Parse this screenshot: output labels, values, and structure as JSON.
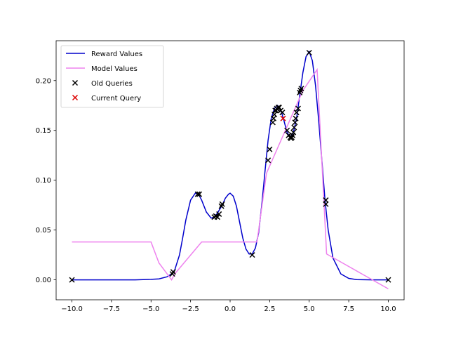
{
  "chart_data": {
    "type": "line",
    "title": "",
    "xlabel": "",
    "ylabel": "",
    "xlim": [
      -11,
      11
    ],
    "ylim": [
      -0.02,
      0.24
    ],
    "xticks": [
      -10.0,
      -7.5,
      -5.0,
      -2.5,
      0.0,
      2.5,
      5.0,
      7.5,
      10.0
    ],
    "xtick_labels": [
      "−10.0",
      "−7.5",
      "−5.0",
      "−2.5",
      "0.0",
      "2.5",
      "5.0",
      "7.5",
      "10.0"
    ],
    "yticks": [
      0.0,
      0.05,
      0.1,
      0.15,
      0.2
    ],
    "ytick_labels": [
      "0.00",
      "0.05",
      "0.10",
      "0.15",
      "0.20"
    ],
    "legend_position": "upper-left",
    "series": [
      {
        "name": "Reward Values",
        "kind": "line",
        "color": "#0000cc",
        "x": [
          -10,
          -6,
          -5,
          -4.5,
          -4,
          -3.7,
          -3.5,
          -3.2,
          -3.0,
          -2.8,
          -2.5,
          -2.2,
          -2.0,
          -1.8,
          -1.5,
          -1.2,
          -1.0,
          -0.8,
          -0.5,
          -0.3,
          -0.1,
          0.0,
          0.2,
          0.4,
          0.6,
          0.8,
          1.0,
          1.2,
          1.4,
          1.6,
          1.8,
          2.0,
          2.2,
          2.4,
          2.6,
          2.8,
          3.0,
          3.2,
          3.4,
          3.6,
          3.8,
          4.0,
          4.2,
          4.4,
          4.6,
          4.8,
          5.0,
          5.2,
          5.4,
          5.6,
          5.8,
          6.0,
          6.2,
          6.5,
          7.0,
          7.5,
          8.0,
          9.0,
          10.0
        ],
        "y": [
          0.0,
          0.0,
          0.0005,
          0.001,
          0.003,
          0.006,
          0.01,
          0.025,
          0.042,
          0.06,
          0.08,
          0.087,
          0.086,
          0.08,
          0.068,
          0.062,
          0.063,
          0.067,
          0.075,
          0.082,
          0.086,
          0.087,
          0.084,
          0.074,
          0.058,
          0.042,
          0.031,
          0.026,
          0.026,
          0.032,
          0.047,
          0.075,
          0.108,
          0.14,
          0.162,
          0.172,
          0.175,
          0.171,
          0.16,
          0.148,
          0.143,
          0.148,
          0.162,
          0.185,
          0.208,
          0.224,
          0.229,
          0.22,
          0.195,
          0.16,
          0.12,
          0.08,
          0.05,
          0.022,
          0.006,
          0.0015,
          0.0003,
          0.0,
          0.0
        ]
      },
      {
        "name": "Model Values",
        "kind": "line",
        "color": "#ee82ee",
        "x": [
          -10,
          -5.0,
          -4.5,
          -3.7,
          -3.5,
          -1.8,
          1.7,
          2.3,
          4.6,
          5.5,
          6.1,
          10.0
        ],
        "y": [
          0.038,
          0.038,
          0.017,
          0.0,
          0.006,
          0.038,
          0.038,
          0.107,
          0.19,
          0.211,
          0.026,
          -0.009
        ]
      },
      {
        "name": "Old Queries",
        "kind": "scatter",
        "marker": "x",
        "color": "#000000",
        "x": [
          -10.0,
          10.0,
          5.0,
          6.05,
          6.05,
          -3.65,
          -3.6,
          -2.05,
          -1.95,
          -1.0,
          -0.9,
          -0.8,
          -0.7,
          -0.55,
          -0.5,
          1.4,
          2.4,
          2.5,
          2.7,
          2.75,
          2.8,
          2.85,
          2.9,
          2.95,
          3.0,
          3.05,
          3.1,
          3.2,
          3.3,
          3.6,
          3.7,
          3.8,
          3.85,
          3.9,
          3.95,
          4.0,
          4.05,
          4.1,
          4.15,
          4.2,
          4.3,
          4.4,
          4.45,
          4.5
        ],
        "y": [
          0.0,
          0.0,
          0.228,
          0.08,
          0.076,
          0.006,
          0.008,
          0.086,
          0.086,
          0.063,
          0.064,
          0.063,
          0.066,
          0.074,
          0.076,
          0.025,
          0.12,
          0.131,
          0.158,
          0.162,
          0.166,
          0.17,
          0.17,
          0.172,
          0.171,
          0.173,
          0.173,
          0.17,
          0.168,
          0.15,
          0.145,
          0.143,
          0.142,
          0.143,
          0.145,
          0.148,
          0.153,
          0.158,
          0.162,
          0.168,
          0.172,
          0.188,
          0.19,
          0.192
        ]
      },
      {
        "name": "Current Query",
        "kind": "scatter",
        "marker": "x",
        "color": "#dd0000",
        "x": [
          3.35
        ],
        "y": [
          0.162
        ]
      }
    ]
  }
}
